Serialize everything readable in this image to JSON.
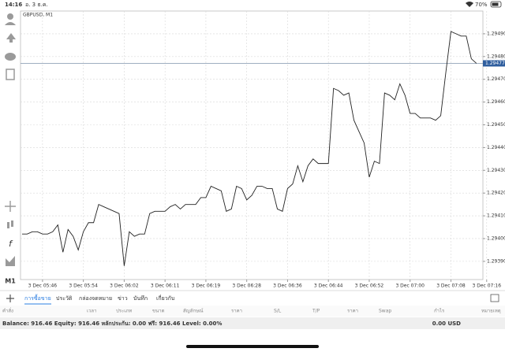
{
  "status_bar": {
    "time": "14:16",
    "date": "อ. 3 ธ.ค.",
    "battery": "70%"
  },
  "toolbar": {
    "timeframe": "M1"
  },
  "chart_data": {
    "type": "line",
    "title": "GBPUSD, M1",
    "categories": [
      null,
      null,
      null,
      null,
      "3 Dec 05:46",
      null,
      null,
      null,
      null,
      null,
      null,
      null,
      "3 Dec 05:54",
      null,
      null,
      null,
      null,
      null,
      null,
      null,
      "3 Dec 06:02",
      null,
      null,
      null,
      null,
      null,
      null,
      null,
      "3 Dec 06:11",
      null,
      null,
      null,
      null,
      null,
      null,
      null,
      "3 Dec 06:19",
      null,
      null,
      null,
      null,
      null,
      null,
      null,
      "3 Dec 06:28",
      null,
      null,
      null,
      null,
      null,
      null,
      null,
      "3 Dec 06:36",
      null,
      null,
      null,
      null,
      null,
      null,
      null,
      "3 Dec 06:44",
      null,
      null,
      null,
      null,
      null,
      null,
      null,
      "3 Dec 06:52",
      null,
      null,
      null,
      null,
      null,
      null,
      null,
      "3 Dec 07:00",
      null,
      null,
      null,
      null,
      null,
      null,
      null,
      "3 Dec 07:08",
      null,
      null,
      null,
      null,
      null,
      null,
      "3 Dec 07:16"
    ],
    "values": [
      1.29402,
      1.29402,
      1.29403,
      1.29403,
      1.29402,
      1.29402,
      1.29403,
      1.29406,
      1.29394,
      1.29404,
      1.29401,
      1.29395,
      1.29403,
      1.29407,
      1.29407,
      1.29415,
      1.29414,
      1.29413,
      1.29412,
      1.29411,
      1.29388,
      1.29403,
      1.29401,
      1.29402,
      1.29402,
      1.29411,
      1.29412,
      1.29412,
      1.29412,
      1.29414,
      1.29415,
      1.29413,
      1.29415,
      1.29415,
      1.29415,
      1.29418,
      1.29418,
      1.29423,
      1.29422,
      1.29421,
      1.29412,
      1.29413,
      1.29423,
      1.29422,
      1.29417,
      1.29419,
      1.29423,
      1.29423,
      1.29422,
      1.29422,
      1.29413,
      1.29412,
      1.29422,
      1.29424,
      1.29432,
      1.29425,
      1.29432,
      1.29435,
      1.29433,
      1.29433,
      1.29433,
      1.29466,
      1.29465,
      1.29463,
      1.29464,
      1.29452,
      1.29447,
      1.29442,
      1.29427,
      1.29434,
      1.29433,
      1.29464,
      1.29463,
      1.29461,
      1.29468,
      1.29463,
      1.29455,
      1.29455,
      1.29453,
      1.29453,
      1.29453,
      1.29452,
      1.29454,
      1.29473,
      1.29491,
      1.2949,
      1.29489,
      1.29489,
      1.29479,
      1.29477,
      null,
      null
    ],
    "color": "#222222",
    "ylim": [
      1.29382,
      1.295
    ],
    "yticks": [
      {
        "value": 1.2949,
        "label": "1.29490"
      },
      {
        "value": 1.2948,
        "label": "1.29480"
      },
      {
        "value": 1.2947,
        "label": "1.29470"
      },
      {
        "value": 1.2946,
        "label": "1.29460"
      },
      {
        "value": 1.2945,
        "label": "1.29450"
      },
      {
        "value": 1.2944,
        "label": "1.29440"
      },
      {
        "value": 1.2943,
        "label": "1.29430"
      },
      {
        "value": 1.2942,
        "label": "1.29420"
      },
      {
        "value": 1.2941,
        "label": "1.29410"
      },
      {
        "value": 1.294,
        "label": "1.29400"
      },
      {
        "value": 1.2939,
        "label": "1.29390"
      }
    ],
    "current_price": 1.29477,
    "grid": true
  },
  "tabs": [
    "การซื้อขาย",
    "ประวัติ",
    "กล่องจดหมาย",
    "ข่าว",
    "บันทึก",
    "เกี่ยวกับ"
  ],
  "table_header": [
    "คำสั่ง",
    "เวลา",
    "ประเภท",
    "ขนาด",
    "สัญลักษณ์",
    "ราคา",
    "S/L",
    "T/P",
    "ราคา",
    "Swap",
    "กำไร",
    "หมายเหตุ"
  ],
  "balance": {
    "summary": "Balance: 916.46 Equity: 916.46 หลักประกัน: 0.00 ฟรี: 916.46 Level: 0.00%",
    "total": "0.00 USD"
  }
}
